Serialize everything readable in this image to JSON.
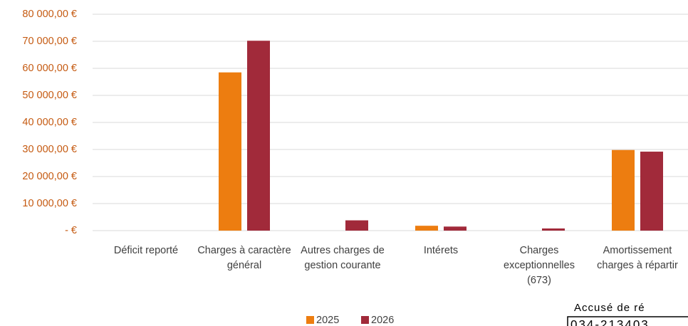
{
  "chart_data": {
    "type": "bar",
    "categories": [
      "Déficit reporté",
      "Charges à caractère général",
      "Autres charges de gestion courante",
      "Intérets",
      "Charges exceptionnelles (673)",
      "Amortissement charges à répartir"
    ],
    "series": [
      {
        "name": "2025",
        "color": "#ed7d10",
        "values": [
          0,
          58500,
          0,
          1800,
          0,
          29800
        ]
      },
      {
        "name": "2026",
        "color": "#a12a3a",
        "values": [
          0,
          70200,
          3800,
          1500,
          800,
          29200
        ]
      }
    ],
    "ylim": [
      0,
      80000
    ],
    "yticks": [
      {
        "value": 0,
        "label": "-  €"
      },
      {
        "value": 10000,
        "label": "10 000,00 €"
      },
      {
        "value": 20000,
        "label": "20 000,00 €"
      },
      {
        "value": 30000,
        "label": "30 000,00 €"
      },
      {
        "value": 40000,
        "label": "40 000,00 €"
      },
      {
        "value": 50000,
        "label": "50 000,00 €"
      },
      {
        "value": 60000,
        "label": "60 000,00 €"
      },
      {
        "value": 70000,
        "label": "70 000,00 €"
      },
      {
        "value": 80000,
        "label": "80 000,00 €"
      }
    ],
    "grid": true,
    "legend": "bottom",
    "stamp": {
      "line1": "Accusé de ré",
      "line2": "034-213403"
    }
  }
}
